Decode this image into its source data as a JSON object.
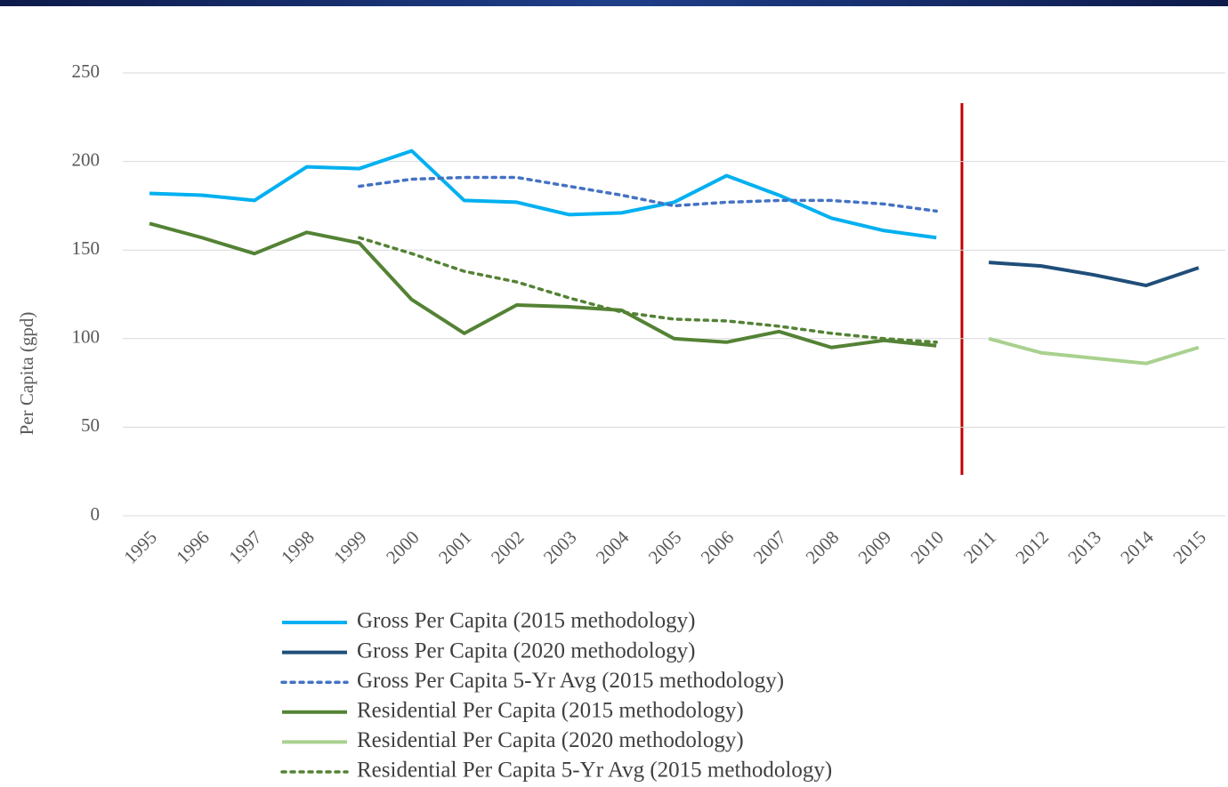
{
  "chart_data": {
    "type": "line",
    "y_label": "Per Capita (gpd)",
    "categories": [
      "1995",
      "1996",
      "1997",
      "1998",
      "1999",
      "2000",
      "2001",
      "2002",
      "2003",
      "2004",
      "2005",
      "2006",
      "2007",
      "2008",
      "2009",
      "2010",
      "2011",
      "2012",
      "2013",
      "2014",
      "2015"
    ],
    "ylim": [
      0,
      250
    ],
    "yticks": [
      0,
      50,
      100,
      150,
      200,
      250
    ],
    "grid": true,
    "series": [
      {
        "name": "Gross Per Capita (2015 methodology)",
        "color": "#00b0f0",
        "style": "solid",
        "values": [
          182,
          181,
          178,
          197,
          196,
          206,
          178,
          177,
          170,
          171,
          177,
          192,
          181,
          168,
          161,
          157,
          null,
          null,
          null,
          null,
          null
        ]
      },
      {
        "name": "Gross Per Capita (2020 methodology)",
        "color": "#1f4e79",
        "style": "solid",
        "values": [
          null,
          null,
          null,
          null,
          null,
          null,
          null,
          null,
          null,
          null,
          null,
          null,
          null,
          null,
          null,
          null,
          143,
          141,
          136,
          130,
          140
        ]
      },
      {
        "name": "Gross Per Capita 5-Yr Avg (2015 methodology)",
        "color": "#4472c4",
        "style": "dotted",
        "values": [
          null,
          null,
          null,
          null,
          186,
          190,
          191,
          191,
          186,
          181,
          175,
          177,
          178,
          178,
          176,
          172,
          null,
          null,
          null,
          null,
          null
        ]
      },
      {
        "name": "Residential Per Capita (2015 methodology)",
        "color": "#548235",
        "style": "solid",
        "values": [
          165,
          157,
          148,
          160,
          154,
          122,
          103,
          119,
          118,
          116,
          100,
          98,
          104,
          95,
          99,
          96,
          null,
          null,
          null,
          null,
          null
        ]
      },
      {
        "name": "Residential Per Capita (2020 methodology)",
        "color": "#a9d18e",
        "style": "solid",
        "values": [
          null,
          null,
          null,
          null,
          null,
          null,
          null,
          null,
          null,
          null,
          null,
          null,
          null,
          null,
          null,
          null,
          100,
          92,
          89,
          86,
          95
        ]
      },
      {
        "name": "Residential Per Capita 5-Yr Avg (2015 methodology)",
        "color": "#548235",
        "style": "dotted",
        "values": [
          null,
          null,
          null,
          null,
          157,
          148,
          138,
          132,
          123,
          115,
          111,
          110,
          107,
          103,
          100,
          98,
          null,
          null,
          null,
          null,
          null
        ]
      }
    ]
  }
}
